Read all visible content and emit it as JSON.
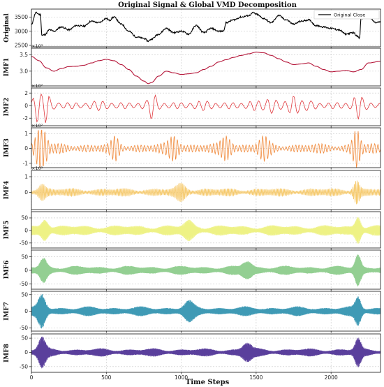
{
  "chart_data": {
    "type": "line",
    "title": "Original Signal & Global VMD Decomposition",
    "xlabel": "Time Steps",
    "xlim": [
      0,
      2330
    ],
    "x_ticks": [
      "0",
      "500",
      "1000",
      "1500",
      "2000"
    ],
    "x_tick_values": [
      0,
      500,
      1000,
      1500,
      2000
    ],
    "grid": true,
    "legend": {
      "placement": "top-right",
      "entries": [
        "Original Close"
      ]
    },
    "panels": [
      {
        "ylabel": "Original",
        "color": "#000000",
        "multiplier": "",
        "ylim": [
          2450,
          3780
        ],
        "y_ticks": [
          "2500",
          "3000",
          "3500"
        ],
        "y_tick_values": [
          2500,
          3000,
          3500
        ],
        "kind": "smooth",
        "x": [
          0,
          30,
          60,
          70,
          90,
          120,
          150,
          200,
          250,
          300,
          350,
          400,
          450,
          500,
          520,
          550,
          600,
          650,
          700,
          750,
          780,
          800,
          850,
          900,
          950,
          1000,
          1050,
          1100,
          1150,
          1200,
          1250,
          1280,
          1300,
          1350,
          1400,
          1450,
          1480,
          1500,
          1550,
          1600,
          1650,
          1700,
          1750,
          1800,
          1850,
          1900,
          1950,
          2000,
          2050,
          2100,
          2150,
          2170,
          2190,
          2200,
          2250,
          2300,
          2330
        ],
        "values": [
          3250,
          3650,
          3580,
          2850,
          2880,
          3050,
          3000,
          3150,
          3050,
          3200,
          3180,
          3350,
          3300,
          3450,
          3380,
          3500,
          3250,
          3000,
          2800,
          2750,
          2650,
          2720,
          2900,
          3100,
          2950,
          3000,
          2900,
          3200,
          2950,
          3100,
          3000,
          3000,
          3300,
          3400,
          3500,
          3550,
          3650,
          3600,
          3450,
          3300,
          3550,
          3400,
          3250,
          3350,
          3400,
          3200,
          3150,
          3100,
          3050,
          2900,
          2950,
          2850,
          2750,
          3450,
          3500,
          3300,
          3330
        ]
      },
      {
        "ylabel": "IMF1",
        "color": "#b5173a",
        "multiplier": "×10³",
        "ylim": [
          2550,
          3700
        ],
        "y_ticks": [
          "3.0",
          "3.5"
        ],
        "y_tick_values": [
          3000,
          3500
        ],
        "kind": "smooth",
        "x": [
          0,
          50,
          100,
          150,
          200,
          250,
          300,
          350,
          400,
          450,
          500,
          550,
          600,
          650,
          700,
          750,
          780,
          800,
          850,
          900,
          950,
          1000,
          1050,
          1100,
          1150,
          1200,
          1250,
          1300,
          1350,
          1400,
          1450,
          1500,
          1550,
          1600,
          1650,
          1700,
          1750,
          1800,
          1850,
          1900,
          1950,
          2000,
          2050,
          2100,
          2150,
          2200,
          2250,
          2330
        ],
        "values": [
          3450,
          3320,
          3100,
          3000,
          3080,
          3140,
          3150,
          3180,
          3250,
          3320,
          3360,
          3320,
          3200,
          3050,
          2850,
          2700,
          2620,
          2650,
          2850,
          3000,
          2950,
          2900,
          2920,
          2950,
          3050,
          3150,
          3280,
          3350,
          3420,
          3480,
          3530,
          3580,
          3560,
          3480,
          3380,
          3280,
          3200,
          3220,
          3250,
          3150,
          3050,
          2980,
          3000,
          3020,
          2980,
          3050,
          3250,
          3300
        ]
      },
      {
        "ylabel": "IMF2",
        "color": "#e0383d",
        "multiplier": "×10²",
        "ylim": [
          -320,
          280
        ],
        "y_ticks": [
          "-2",
          "0",
          "2"
        ],
        "y_tick_values": [
          -200,
          0,
          200
        ],
        "kind": "osc",
        "period": 58,
        "amp": 65,
        "seed": 2,
        "bursts": [
          [
            40,
            220,
            30
          ],
          [
            100,
            200,
            20
          ],
          [
            810,
            160,
            25
          ],
          [
            1600,
            90,
            40
          ],
          [
            1750,
            120,
            40
          ],
          [
            2180,
            140,
            30
          ]
        ]
      },
      {
        "ylabel": "IMF3",
        "color": "#f08a3c",
        "multiplier": "×10²",
        "ylim": [
          -130,
          140
        ],
        "y_ticks": [
          "-1",
          "0",
          "1"
        ],
        "y_tick_values": [
          -100,
          0,
          100
        ],
        "kind": "osc",
        "period": 22,
        "amp": 28,
        "seed": 3,
        "bursts": [
          [
            50,
            110,
            30
          ],
          [
            90,
            80,
            25
          ],
          [
            560,
            60,
            30
          ],
          [
            950,
            70,
            40
          ],
          [
            1300,
            70,
            40
          ],
          [
            1550,
            60,
            40
          ],
          [
            2170,
            110,
            30
          ]
        ]
      },
      {
        "ylabel": "IMF4",
        "color": "#f6c96a",
        "multiplier": "×10²",
        "ylim": [
          -110,
          140
        ],
        "y_ticks": [
          "0",
          "1"
        ],
        "y_tick_values": [
          0,
          100
        ],
        "kind": "osc",
        "period": 9,
        "amp": 22,
        "seed": 4,
        "bursts": [
          [
            70,
            40,
            30
          ],
          [
            1000,
            40,
            40
          ],
          [
            2170,
            60,
            25
          ]
        ]
      },
      {
        "ylabel": "IMF5",
        "color": "#eef285",
        "multiplier": "",
        "ylim": [
          -70,
          75
        ],
        "y_ticks": [
          "-50",
          "0",
          "50"
        ],
        "y_tick_values": [
          -50,
          0,
          50
        ],
        "kind": "osc",
        "period": 5,
        "amp": 18,
        "seed": 5,
        "bursts": [
          [
            90,
            35,
            30
          ],
          [
            1050,
            25,
            40
          ],
          [
            2180,
            45,
            25
          ]
        ]
      },
      {
        "ylabel": "IMF6",
        "color": "#93cf92",
        "multiplier": "",
        "ylim": [
          -70,
          75
        ],
        "y_ticks": [
          "-50",
          "0",
          "50"
        ],
        "y_tick_values": [
          -50,
          0,
          50
        ],
        "kind": "osc",
        "period": 3.6,
        "amp": 14,
        "seed": 6,
        "bursts": [
          [
            80,
            35,
            30
          ],
          [
            1440,
            25,
            40
          ],
          [
            2180,
            50,
            25
          ]
        ]
      },
      {
        "ylabel": "IMF7",
        "color": "#3f9ab5",
        "multiplier": "",
        "ylim": [
          -60,
          60
        ],
        "y_ticks": [
          "-50",
          "0",
          "50"
        ],
        "y_tick_values": [
          -50,
          0,
          50
        ],
        "kind": "osc",
        "period": 2.7,
        "amp": 12,
        "seed": 7,
        "bursts": [
          [
            70,
            40,
            30
          ],
          [
            1050,
            20,
            40
          ],
          [
            2180,
            35,
            25
          ]
        ]
      },
      {
        "ylabel": "IMF8",
        "color": "#5a3f9c",
        "multiplier": "",
        "ylim": [
          -70,
          65
        ],
        "y_ticks": [
          "-50",
          "0",
          "50"
        ],
        "y_tick_values": [
          -50,
          0,
          50
        ],
        "kind": "osc",
        "period": 2.2,
        "amp": 12,
        "seed": 8,
        "bursts": [
          [
            70,
            45,
            30
          ],
          [
            1440,
            25,
            40
          ],
          [
            2180,
            40,
            25
          ]
        ]
      }
    ]
  }
}
